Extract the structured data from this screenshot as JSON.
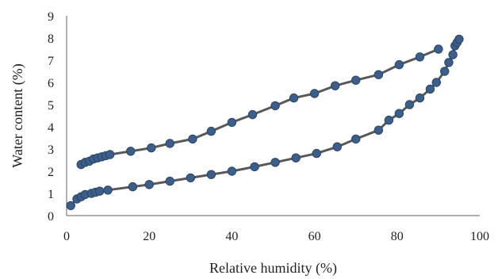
{
  "chart_data": {
    "type": "scatter",
    "xlabel": "Relative humidity (%)",
    "ylabel": "Water content (%)",
    "xlim": [
      0,
      100
    ],
    "ylim": [
      0,
      9
    ],
    "x_ticks": [
      0,
      20,
      40,
      60,
      80,
      100
    ],
    "y_ticks": [
      0,
      1,
      2,
      3,
      4,
      5,
      6,
      7,
      8,
      9
    ],
    "grid": false,
    "legend": "none",
    "colors": {
      "line": "#595959",
      "marker": "#3b5f8a",
      "marker_edge": "#2b4566",
      "axis": "#7f7f7f"
    },
    "series": [
      {
        "x": [
          1,
          2.5,
          3.5,
          4.5,
          6,
          7,
          8,
          10,
          16,
          20,
          25,
          30,
          35,
          40,
          45.5,
          50.5,
          55.5,
          60.5,
          65.5,
          70,
          75.5,
          78,
          80.5,
          83,
          85.5,
          88,
          89.5,
          91.5,
          92.5,
          93.5,
          94,
          94.5,
          95
        ],
        "y": [
          0.45,
          0.75,
          0.85,
          0.95,
          1.0,
          1.05,
          1.1,
          1.15,
          1.3,
          1.4,
          1.55,
          1.7,
          1.85,
          2.0,
          2.2,
          2.4,
          2.6,
          2.8,
          3.1,
          3.45,
          3.85,
          4.3,
          4.6,
          5.0,
          5.3,
          5.7,
          6.0,
          6.5,
          6.9,
          7.25,
          7.65,
          7.8,
          7.95
        ]
      },
      {
        "x": [
          3.5,
          4.5,
          5.5,
          6.5,
          7.5,
          8.5,
          9.5,
          10.5,
          15.5,
          20.5,
          25,
          30.5,
          35,
          40,
          45,
          50.5,
          55,
          60,
          65,
          70,
          75.5,
          80.5,
          85.5,
          90
        ],
        "y": [
          2.3,
          2.4,
          2.45,
          2.55,
          2.6,
          2.65,
          2.7,
          2.75,
          2.9,
          3.05,
          3.25,
          3.45,
          3.8,
          4.2,
          4.55,
          4.95,
          5.3,
          5.5,
          5.85,
          6.1,
          6.35,
          6.8,
          7.15,
          7.5
        ]
      }
    ]
  }
}
